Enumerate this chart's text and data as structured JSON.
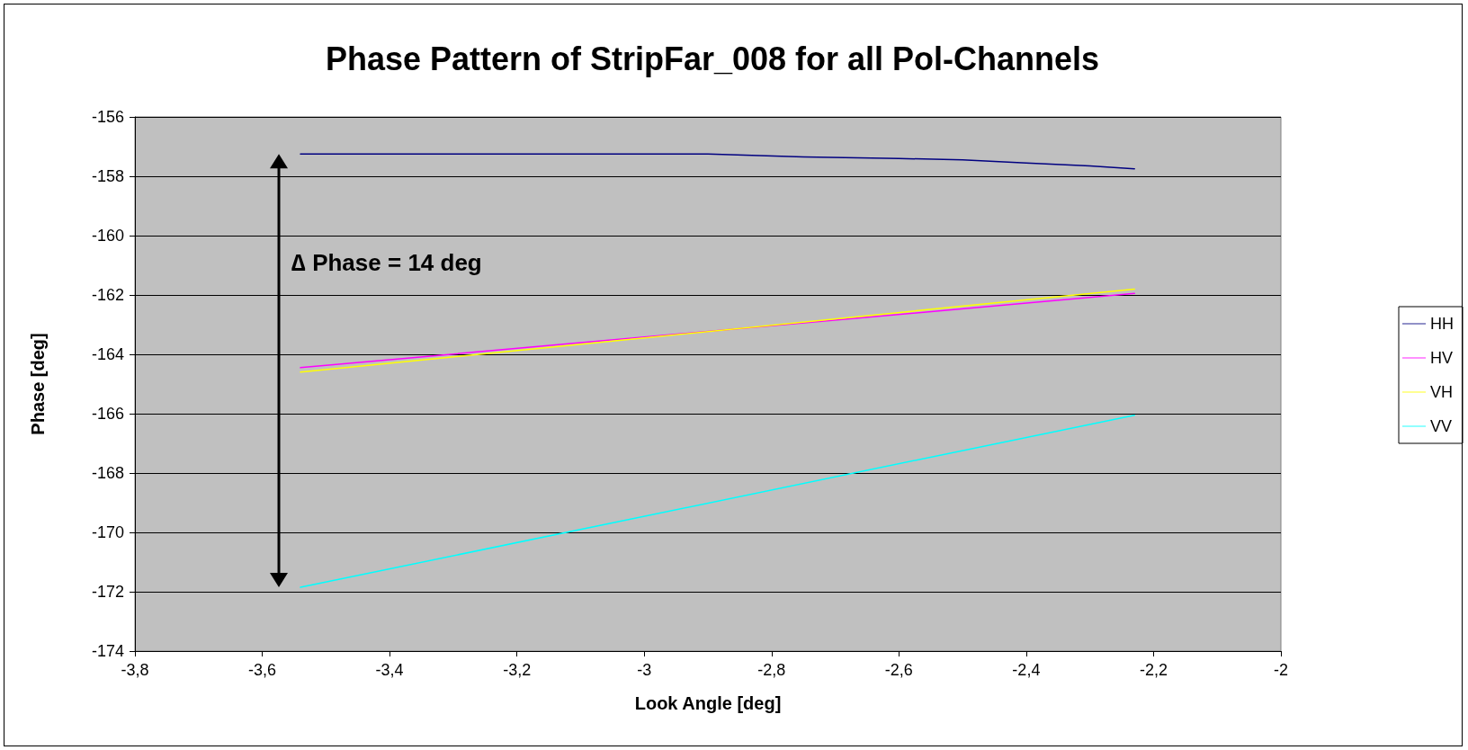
{
  "chart_data": {
    "type": "line",
    "title": "Phase Pattern of StripFar_008 for all Pol-Channels",
    "xlabel": "Look Angle [deg]",
    "ylabel": "Phase [deg]",
    "series": [
      {
        "name": "HH",
        "color": "#000080",
        "x": [
          -3.54,
          -2.9,
          -2.75,
          -2.6,
          -2.5,
          -2.4,
          -2.3,
          -2.23
        ],
        "values": [
          -157.25,
          -157.25,
          -157.35,
          -157.4,
          -157.45,
          -157.55,
          -157.65,
          -157.75
        ]
      },
      {
        "name": "HV",
        "color": "#ff00ff",
        "x": [
          -3.54,
          -2.23
        ],
        "values": [
          -164.45,
          -161.95
        ]
      },
      {
        "name": "VH",
        "color": "#ffff00",
        "x": [
          -3.54,
          -2.23
        ],
        "values": [
          -164.6,
          -161.8
        ]
      },
      {
        "name": "VV",
        "color": "#00ffff",
        "x": [
          -3.54,
          -2.23
        ],
        "values": [
          -171.85,
          -166.05
        ]
      }
    ],
    "annotations": [
      "∆ Phase = 14 deg"
    ],
    "xlim": [
      -3.8,
      -2
    ],
    "xticks": [
      {
        "value": -3.8,
        "label": "-3,8"
      },
      {
        "value": -3.6,
        "label": "-3,6"
      },
      {
        "value": -3.4,
        "label": "-3,4"
      },
      {
        "value": -3.2,
        "label": "-3,2"
      },
      -3,
      {
        "value": -2.8,
        "label": "-2,8"
      },
      {
        "value": -2.6,
        "label": "-2,6"
      },
      {
        "value": -2.4,
        "label": "-2,4"
      },
      {
        "value": -2.2,
        "label": "-2,2"
      },
      -2
    ],
    "ylim": [
      -174,
      -156
    ],
    "yticks": [
      -174,
      -172,
      -170,
      -168,
      -166,
      -164,
      -162,
      -160,
      -158,
      -156
    ],
    "grid": "y",
    "legend": "right",
    "marker": "none",
    "line_style": "solid"
  }
}
